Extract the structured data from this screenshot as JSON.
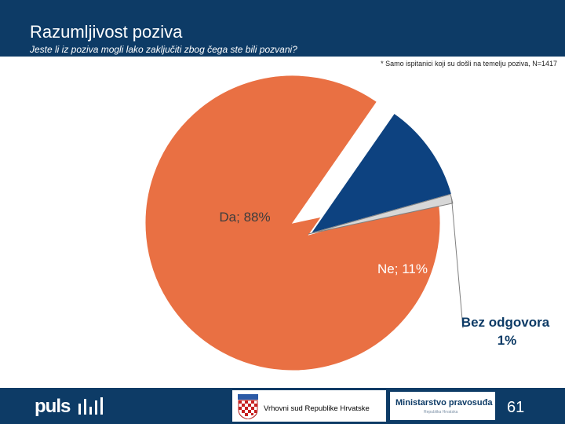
{
  "header": {
    "title": "Razumljivost poziva",
    "subtitle": "Jeste li iz poziva mogli lako zaključiti zbog čega ste bili pozvani?"
  },
  "note": "* Samo ispitanici koji su došli na temelju poziva, N=1417",
  "chart_data": {
    "type": "pie",
    "title": "",
    "slices": [
      {
        "label": "Da",
        "value": 88,
        "display": "Da; 88%",
        "color": "#e97043"
      },
      {
        "label": "Ne",
        "value": 11,
        "display": "Ne; 11%",
        "color": "#0d4280"
      },
      {
        "label": "Bez odgovora",
        "value": 1,
        "display_line1": "Bez odgovora",
        "display_line2": "1%",
        "color": "#d7d7d7"
      }
    ]
  },
  "footer": {
    "logo_text": "puls",
    "court_label": "Vrhovni sud Republike Hrvatske",
    "ministry_label": "Ministarstvo pravosuđa",
    "ministry_sub": "Republika Hrvatska",
    "page_number": "61"
  },
  "colors": {
    "brand": "#0d3b66",
    "accent": "#e97043"
  }
}
